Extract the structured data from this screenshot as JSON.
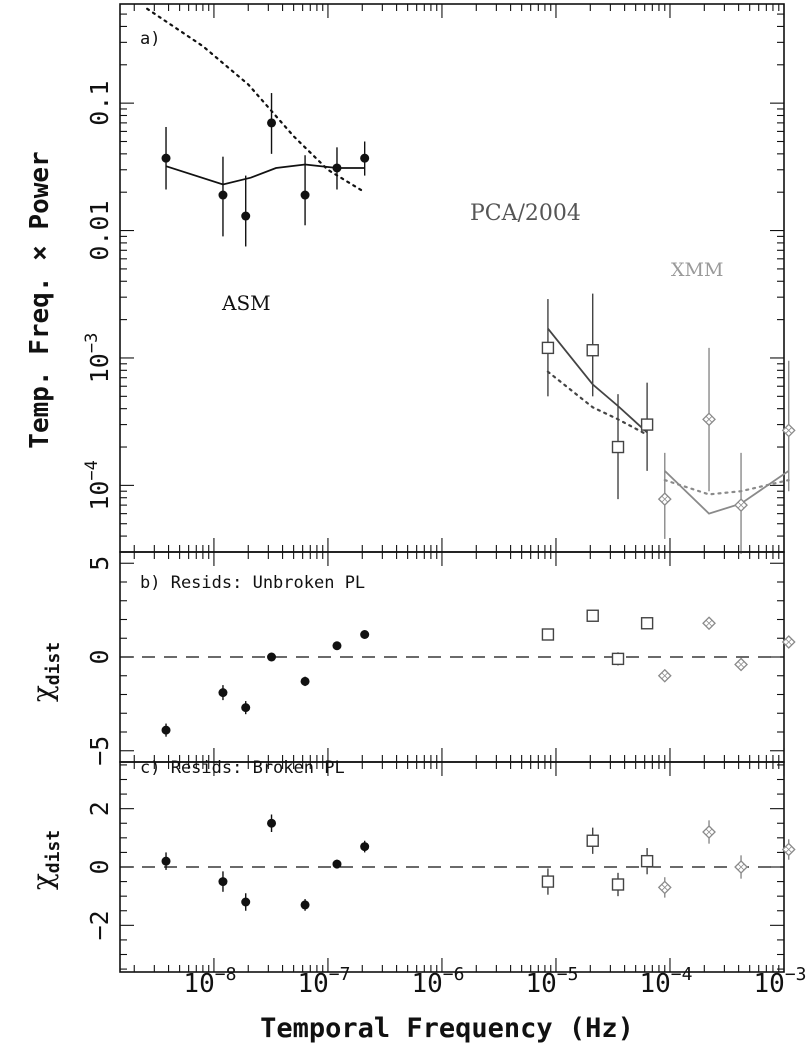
{
  "chart_data": {
    "type": "scatter",
    "xlabel": "Temporal Frequency (Hz)",
    "xscale": "log",
    "xlim": [
      1.5e-09,
      0.001
    ],
    "x_ticks": [
      1e-08,
      1e-07,
      1e-06,
      1e-05,
      0.0001,
      0.001
    ],
    "x_tick_labels": [
      {
        "base": "10",
        "exp": "−8"
      },
      {
        "base": "10",
        "exp": "−7"
      },
      {
        "base": "10",
        "exp": "−6"
      },
      {
        "base": "10",
        "exp": "−5"
      },
      {
        "base": "10",
        "exp": "−4"
      },
      {
        "base": "10",
        "exp": "−3"
      }
    ],
    "panels": [
      {
        "label": "a)",
        "ylabel": "Temp. Freq. × Power",
        "yscale": "log",
        "ylim": [
          3e-05,
          0.6
        ],
        "y_tick_labels": [
          {
            "value": 0.1,
            "text": "0.1"
          },
          {
            "value": 0.01,
            "text": "0.01"
          },
          {
            "value": 0.001,
            "base": "10",
            "exp": "−3"
          },
          {
            "value": 0.0001,
            "base": "10",
            "exp": "−4"
          }
        ],
        "annotations": [
          {
            "text": "ASM",
            "color": "#111111"
          },
          {
            "text": "PCA/2004",
            "color": "#555555"
          },
          {
            "text": "XMM",
            "color": "#9a9a9a"
          }
        ],
        "series": [
          {
            "name": "ASM",
            "marker": "filled-circle",
            "color": "#111111",
            "points": [
              {
                "x": 3.8e-09,
                "y": 0.037,
                "lo": 0.021,
                "hi": 0.065
              },
              {
                "x": 1.2e-08,
                "y": 0.019,
                "lo": 0.009,
                "hi": 0.038
              },
              {
                "x": 1.9e-08,
                "y": 0.013,
                "lo": 0.0075,
                "hi": 0.027
              },
              {
                "x": 3.2e-08,
                "y": 0.07,
                "lo": 0.04,
                "hi": 0.12
              },
              {
                "x": 6.3e-08,
                "y": 0.019,
                "lo": 0.011,
                "hi": 0.039
              },
              {
                "x": 1.2e-07,
                "y": 0.031,
                "lo": 0.021,
                "hi": 0.045
              },
              {
                "x": 2.1e-07,
                "y": 0.037,
                "lo": 0.027,
                "hi": 0.05
              }
            ]
          },
          {
            "name": "PCA/2004",
            "marker": "open-square",
            "color": "#444444",
            "points": [
              {
                "x": 8.5e-06,
                "y": 0.0012,
                "lo": 0.0005,
                "hi": 0.0029
              },
              {
                "x": 2.1e-05,
                "y": 0.00115,
                "lo": 0.0005,
                "hi": 0.0032
              },
              {
                "x": 3.5e-05,
                "y": 0.0002,
                "lo": 7.8e-05,
                "hi": 0.00052
              },
              {
                "x": 6.3e-05,
                "y": 0.0003,
                "lo": 0.00013,
                "hi": 0.00064
              }
            ]
          },
          {
            "name": "XMM",
            "marker": "open-diamond",
            "color": "#8a8a8a",
            "points": [
              {
                "x": 9e-05,
                "y": 7.8e-05,
                "lo": 3.8e-05,
                "hi": 0.00018
              },
              {
                "x": 0.00022,
                "y": 0.00033,
                "lo": 9e-05,
                "hi": 0.0012
              },
              {
                "x": 0.00042,
                "y": 7e-05,
                "lo": 2.9e-05,
                "hi": 0.00018
              },
              {
                "x": 0.0011,
                "y": 0.00027,
                "lo": 9e-05,
                "hi": 0.00095
              }
            ]
          }
        ],
        "model_lines": [
          {
            "style": "solid",
            "color": "#111111",
            "points": [
              [
                3.8e-09,
                0.032
              ],
              [
                1.2e-08,
                0.023
              ],
              [
                2.1e-08,
                0.026
              ],
              [
                3.5e-08,
                0.031
              ],
              [
                6.3e-08,
                0.033
              ],
              [
                1.2e-07,
                0.031
              ],
              [
                2.1e-07,
                0.031
              ]
            ]
          },
          {
            "style": "dotted",
            "color": "#111111",
            "points": [
              [
                2.6e-09,
                0.55
              ],
              [
                8e-09,
                0.28
              ],
              [
                2e-08,
                0.14
              ],
              [
                5e-08,
                0.055
              ],
              [
                1e-07,
                0.03
              ],
              [
                2.1e-07,
                0.02
              ]
            ]
          },
          {
            "style": "solid",
            "color": "#444444",
            "points": [
              [
                8.5e-06,
                0.0017
              ],
              [
                2.1e-05,
                0.00062
              ],
              [
                3.5e-05,
                0.00042
              ],
              [
                6.3e-05,
                0.00026
              ]
            ]
          },
          {
            "style": "dotted",
            "color": "#444444",
            "points": [
              [
                8.5e-06,
                0.00078
              ],
              [
                2.1e-05,
                0.00041
              ],
              [
                3.5e-05,
                0.00033
              ],
              [
                6.3e-05,
                0.00025
              ]
            ]
          },
          {
            "style": "solid",
            "color": "#8a8a8a",
            "points": [
              [
                9e-05,
                0.00013
              ],
              [
                0.00022,
                6e-05
              ],
              [
                0.00042,
                7.2e-05
              ],
              [
                0.0011,
                0.00013
              ]
            ]
          },
          {
            "style": "dotted",
            "color": "#8a8a8a",
            "points": [
              [
                9e-05,
                0.00011
              ],
              [
                0.00022,
                8.5e-05
              ],
              [
                0.00042,
                9e-05
              ],
              [
                0.0011,
                0.00011
              ]
            ]
          }
        ]
      },
      {
        "label": "b) Resids: Unbroken PL",
        "ylabel": {
          "main": "χ",
          "sub": "dist"
        },
        "yscale": "linear",
        "ylim": [
          -5.6,
          5.6
        ],
        "y_tick_labels": [
          {
            "value": 5,
            "text": "5"
          },
          {
            "value": 0,
            "text": "0"
          },
          {
            "value": -5,
            "text": "−5"
          }
        ],
        "series": [
          {
            "name": "ASM",
            "marker": "filled-circle",
            "color": "#111111",
            "points": [
              {
                "x": 3.8e-09,
                "y": -3.9,
                "err": 0.35
              },
              {
                "x": 1.2e-08,
                "y": -1.9,
                "err": 0.4
              },
              {
                "x": 1.9e-08,
                "y": -2.7,
                "err": 0.35
              },
              {
                "x": 3.2e-08,
                "y": 0.0,
                "err": 0.2
              },
              {
                "x": 6.3e-08,
                "y": -1.3,
                "err": 0.25
              },
              {
                "x": 1.2e-07,
                "y": 0.6,
                "err": 0.2
              },
              {
                "x": 2.1e-07,
                "y": 1.2,
                "err": 0.2
              }
            ]
          },
          {
            "name": "PCA/2004",
            "marker": "open-square",
            "color": "#444444",
            "points": [
              {
                "x": 8.5e-06,
                "y": 1.2,
                "err": 0.25
              },
              {
                "x": 2.1e-05,
                "y": 2.2,
                "err": 0.3
              },
              {
                "x": 3.5e-05,
                "y": -0.1,
                "err": 0.35
              },
              {
                "x": 6.3e-05,
                "y": 1.8,
                "err": 0.25
              }
            ]
          },
          {
            "name": "XMM",
            "marker": "open-diamond",
            "color": "#8a8a8a",
            "points": [
              {
                "x": 9e-05,
                "y": -1.0,
                "err": 0.3
              },
              {
                "x": 0.00022,
                "y": 1.8,
                "err": 0.3
              },
              {
                "x": 0.00042,
                "y": -0.4,
                "err": 0.3
              },
              {
                "x": 0.0011,
                "y": 0.8,
                "err": 0.3
              }
            ]
          }
        ]
      },
      {
        "label": "c) Resids: Broken PL",
        "ylabel": {
          "main": "χ",
          "sub": "dist"
        },
        "yscale": "linear",
        "ylim": [
          -3.6,
          3.6
        ],
        "y_tick_labels": [
          {
            "value": 2,
            "text": "2"
          },
          {
            "value": 0,
            "text": "0"
          },
          {
            "value": -2,
            "text": "−2"
          }
        ],
        "series": [
          {
            "name": "ASM",
            "marker": "filled-circle",
            "color": "#111111",
            "points": [
              {
                "x": 3.8e-09,
                "y": 0.2,
                "err": 0.3
              },
              {
                "x": 1.2e-08,
                "y": -0.5,
                "err": 0.35
              },
              {
                "x": 1.9e-08,
                "y": -1.2,
                "err": 0.3
              },
              {
                "x": 3.2e-08,
                "y": 1.5,
                "err": 0.3
              },
              {
                "x": 6.3e-08,
                "y": -1.3,
                "err": 0.2
              },
              {
                "x": 1.2e-07,
                "y": 0.1,
                "err": 0.15
              },
              {
                "x": 2.1e-07,
                "y": 0.7,
                "err": 0.2
              }
            ]
          },
          {
            "name": "PCA/2004",
            "marker": "open-square",
            "color": "#444444",
            "points": [
              {
                "x": 8.5e-06,
                "y": -0.5,
                "err": 0.45
              },
              {
                "x": 2.1e-05,
                "y": 0.9,
                "err": 0.45
              },
              {
                "x": 3.5e-05,
                "y": -0.6,
                "err": 0.4
              },
              {
                "x": 6.3e-05,
                "y": 0.2,
                "err": 0.45
              }
            ]
          },
          {
            "name": "XMM",
            "marker": "open-diamond",
            "color": "#8a8a8a",
            "points": [
              {
                "x": 9e-05,
                "y": -0.7,
                "err": 0.35
              },
              {
                "x": 0.00022,
                "y": 1.2,
                "err": 0.4
              },
              {
                "x": 0.00042,
                "y": 0.0,
                "err": 0.4
              },
              {
                "x": 0.0011,
                "y": 0.6,
                "err": 0.35
              }
            ]
          }
        ]
      }
    ]
  }
}
